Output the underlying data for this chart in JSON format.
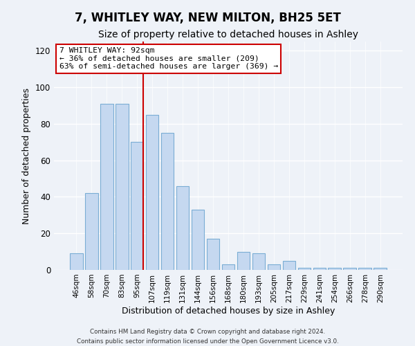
{
  "title": "7, WHITLEY WAY, NEW MILTON, BH25 5ET",
  "subtitle": "Size of property relative to detached houses in Ashley",
  "xlabel": "Distribution of detached houses by size in Ashley",
  "ylabel": "Number of detached properties",
  "bar_labels": [
    "46sqm",
    "58sqm",
    "70sqm",
    "83sqm",
    "95sqm",
    "107sqm",
    "119sqm",
    "131sqm",
    "144sqm",
    "156sqm",
    "168sqm",
    "180sqm",
    "193sqm",
    "205sqm",
    "217sqm",
    "229sqm",
    "241sqm",
    "254sqm",
    "266sqm",
    "278sqm",
    "290sqm"
  ],
  "bar_values": [
    9,
    42,
    91,
    91,
    70,
    85,
    75,
    46,
    33,
    17,
    3,
    10,
    9,
    3,
    5,
    1,
    1,
    1,
    1,
    1,
    1
  ],
  "bar_color": "#c5d8f0",
  "bar_edge_color": "#7aadd4",
  "vline_color": "#cc0000",
  "vline_bar_index": 4,
  "annotation_title": "7 WHITLEY WAY: 92sqm",
  "annotation_line1": "← 36% of detached houses are smaller (209)",
  "annotation_line2": "63% of semi-detached houses are larger (369) →",
  "annotation_box_facecolor": "#ffffff",
  "annotation_box_edgecolor": "#cc0000",
  "ylim": [
    0,
    125
  ],
  "yticks": [
    0,
    20,
    40,
    60,
    80,
    100,
    120
  ],
  "footer1": "Contains HM Land Registry data © Crown copyright and database right 2024.",
  "footer2": "Contains public sector information licensed under the Open Government Licence v3.0.",
  "background_color": "#eef2f8",
  "title_fontsize": 12,
  "subtitle_fontsize": 10,
  "bar_width": 0.85
}
